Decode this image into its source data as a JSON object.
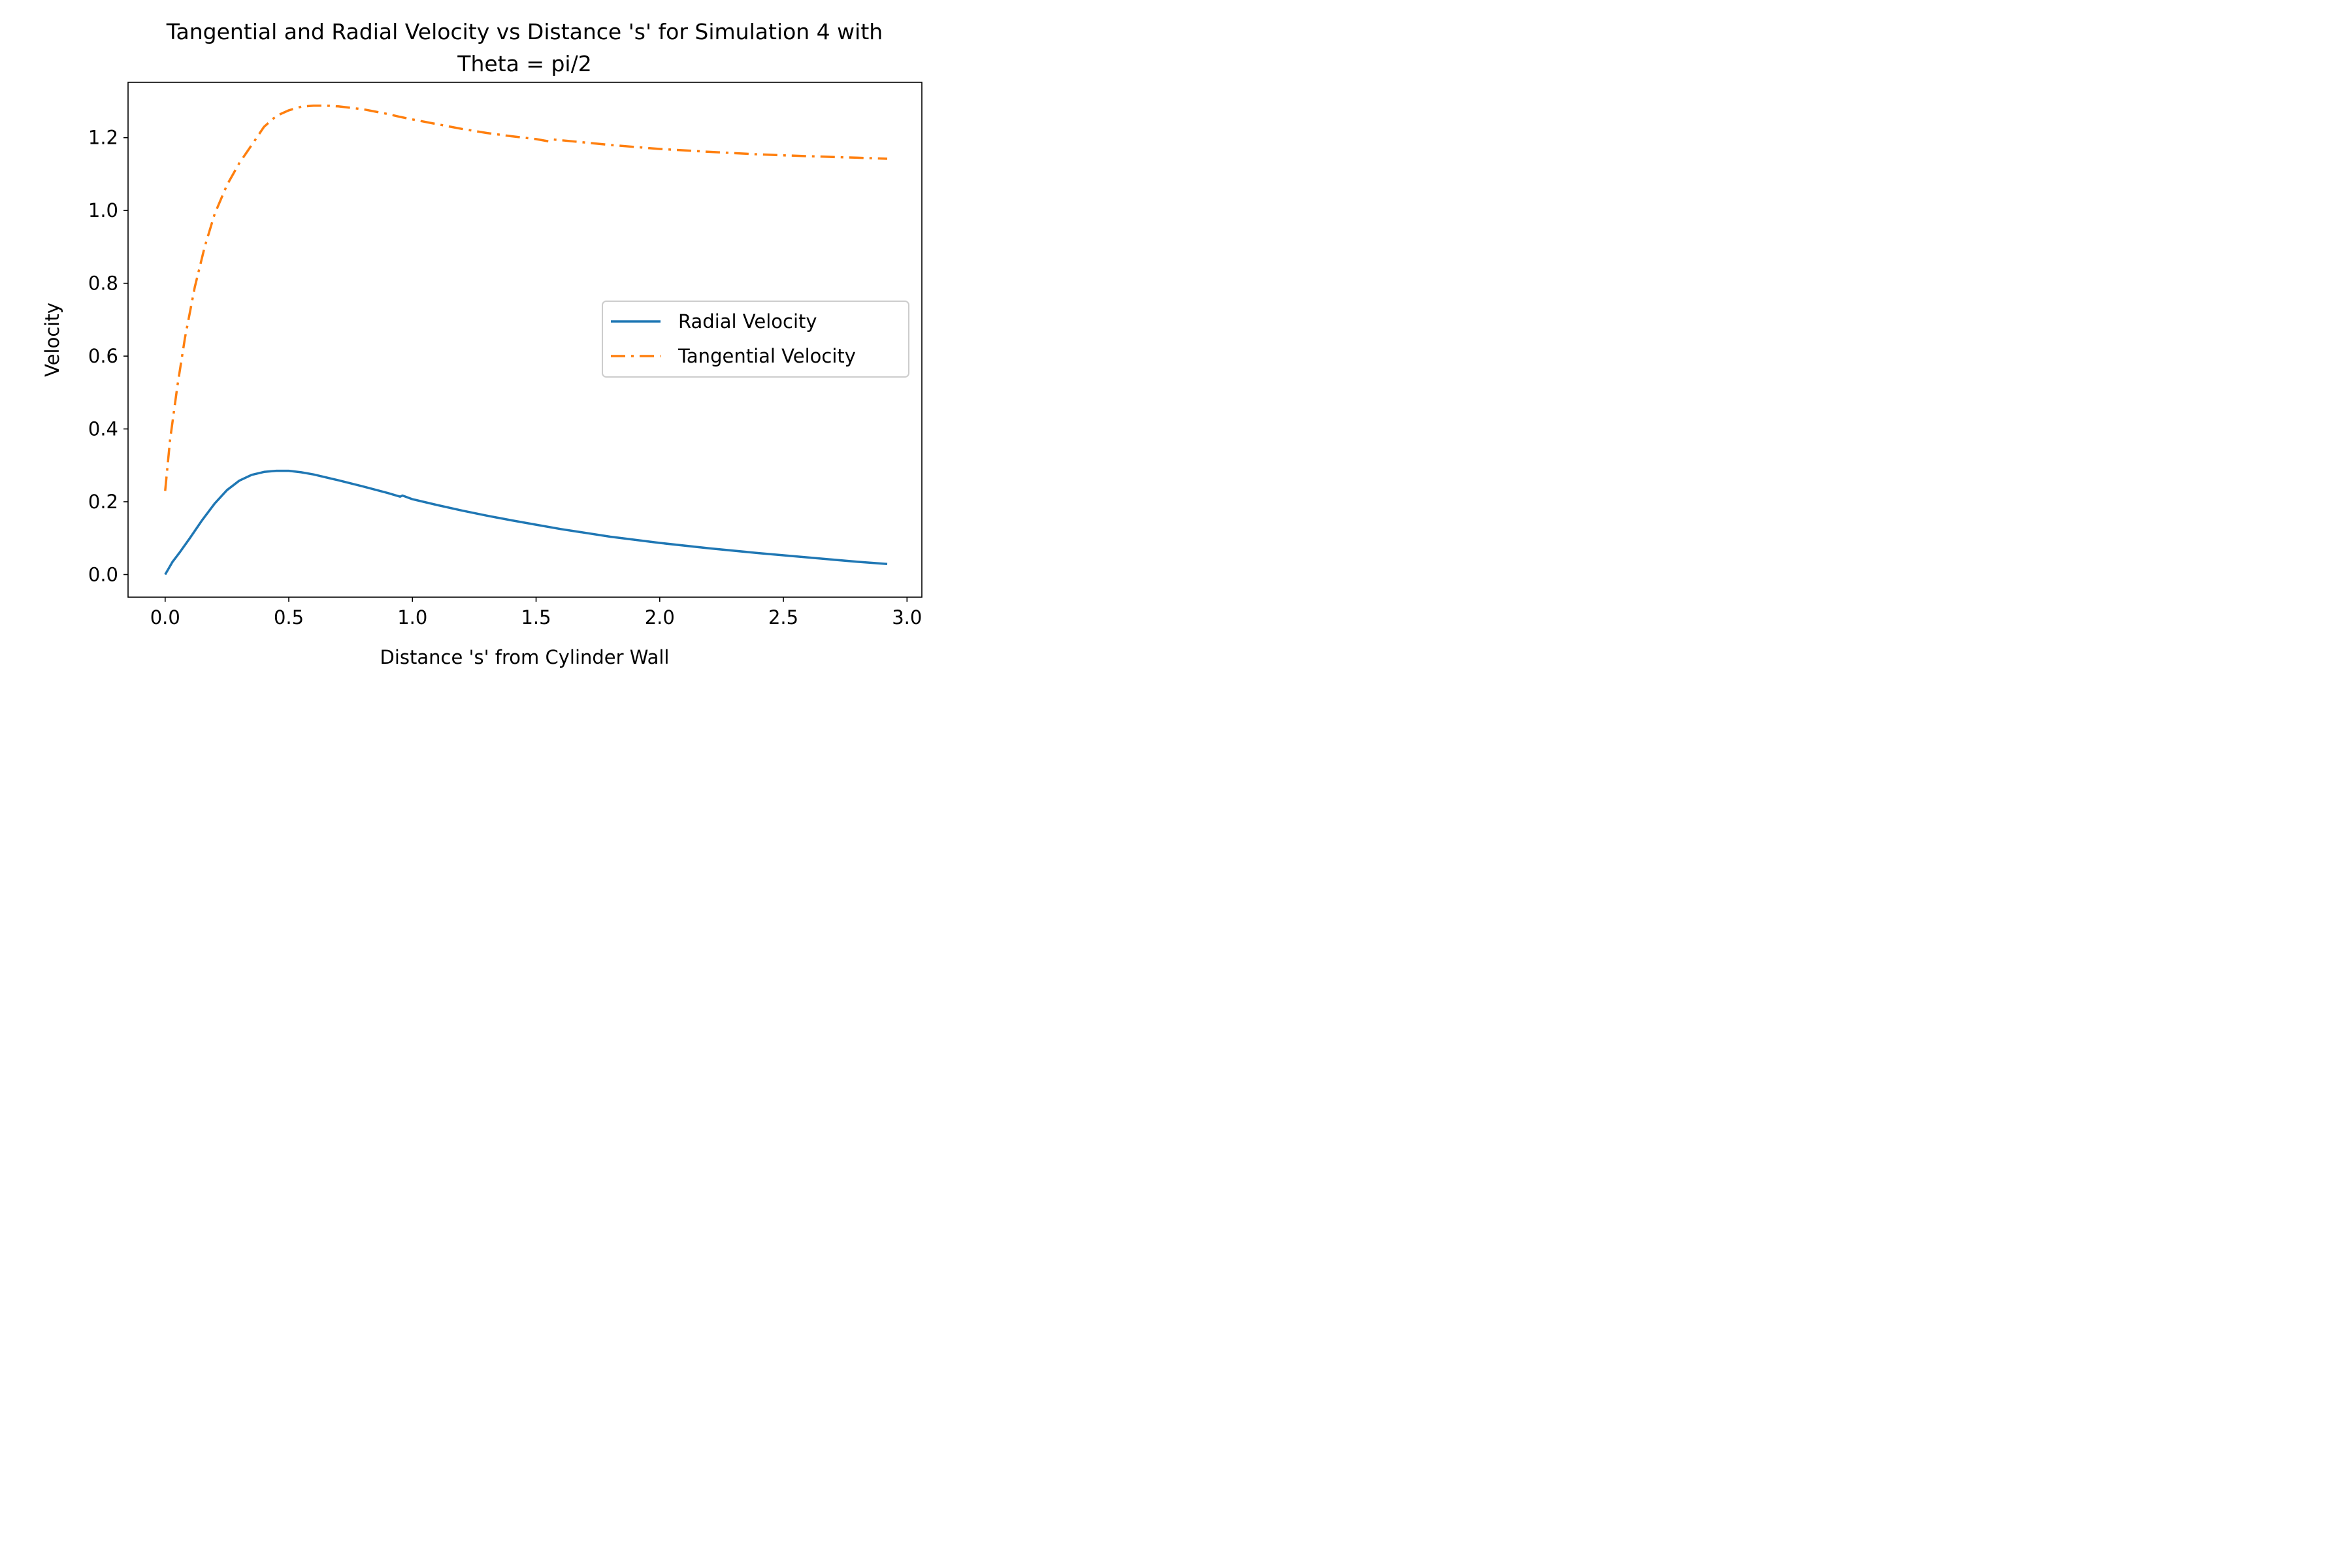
{
  "chart_data": {
    "type": "line",
    "title_line1": "Tangential and Radial Velocity vs Distance 's' for Simulation 4 with",
    "title_line2": "Theta = pi/2",
    "xlabel": "Distance 's' from Cylinder Wall",
    "ylabel": "Velocity",
    "xlim": [
      -0.15,
      3.06
    ],
    "ylim": [
      -0.062,
      1.352
    ],
    "xticks": [
      0.0,
      0.5,
      1.0,
      1.5,
      2.0,
      2.5,
      3.0
    ],
    "xtick_labels": [
      "0.0",
      "0.5",
      "1.0",
      "1.5",
      "2.0",
      "2.5",
      "3.0"
    ],
    "yticks": [
      0.0,
      0.2,
      0.4,
      0.6,
      0.8,
      1.0,
      1.2
    ],
    "ytick_labels": [
      "0.0",
      "0.2",
      "0.4",
      "0.6",
      "0.8",
      "1.0",
      "1.2"
    ],
    "grid": false,
    "legend_position": "center-right",
    "series": [
      {
        "name": "Radial Velocity",
        "color": "#1f77b4",
        "line_style": "solid",
        "x": [
          0.0,
          0.03,
          0.06,
          0.1,
          0.15,
          0.2,
          0.25,
          0.3,
          0.35,
          0.4,
          0.45,
          0.5,
          0.55,
          0.6,
          0.7,
          0.8,
          0.9,
          0.95,
          0.96,
          1.0,
          1.1,
          1.2,
          1.3,
          1.4,
          1.5,
          1.6,
          1.8,
          2.0,
          2.2,
          2.4,
          2.6,
          2.8,
          2.92
        ],
        "y": [
          0.0,
          0.035,
          0.062,
          0.1,
          0.15,
          0.195,
          0.232,
          0.258,
          0.274,
          0.282,
          0.285,
          0.285,
          0.281,
          0.275,
          0.259,
          0.242,
          0.224,
          0.214,
          0.217,
          0.207,
          0.191,
          0.176,
          0.162,
          0.149,
          0.137,
          0.125,
          0.104,
          0.087,
          0.072,
          0.059,
          0.047,
          0.035,
          0.029
        ]
      },
      {
        "name": "Tangential Velocity",
        "color": "#ff7f0e",
        "line_style": "dashdot",
        "x": [
          0.0,
          0.02,
          0.05,
          0.08,
          0.12,
          0.16,
          0.2,
          0.25,
          0.3,
          0.35,
          0.4,
          0.45,
          0.5,
          0.55,
          0.6,
          0.65,
          0.7,
          0.8,
          0.9,
          0.95,
          1.0,
          1.1,
          1.2,
          1.3,
          1.4,
          1.5,
          1.55,
          1.57,
          1.6,
          1.8,
          2.0,
          2.2,
          2.4,
          2.6,
          2.8,
          2.92
        ],
        "y": [
          0.23,
          0.37,
          0.52,
          0.65,
          0.79,
          0.9,
          0.99,
          1.07,
          1.13,
          1.18,
          1.23,
          1.26,
          1.275,
          1.285,
          1.288,
          1.288,
          1.286,
          1.278,
          1.265,
          1.257,
          1.25,
          1.237,
          1.224,
          1.213,
          1.204,
          1.196,
          1.19,
          1.195,
          1.193,
          1.18,
          1.169,
          1.161,
          1.154,
          1.149,
          1.145,
          1.142
        ]
      }
    ]
  }
}
